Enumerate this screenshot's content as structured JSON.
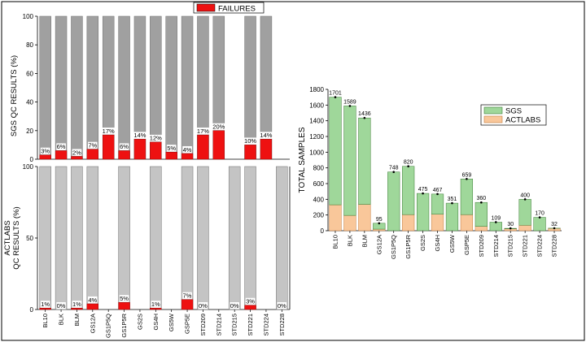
{
  "colors": {
    "sgs_bar": "#a0a0a0",
    "actlabs_bar": "#c4c4c4",
    "failure": "#ee1111",
    "sgs_green": "#9fd79a",
    "sgs_green_edge": "#3b7a33",
    "actlabs_orange": "#f9c79a",
    "actlabs_orange_edge": "#c27a3c",
    "axis": "#000000"
  },
  "chart_data": [
    {
      "id": "sgs-qc",
      "type": "bar",
      "stacked": true,
      "ylabel": "SGS QC RESULTS (%)",
      "ylim": [
        0,
        100
      ],
      "yticks": [
        0,
        20,
        40,
        60,
        80,
        100
      ],
      "legend": {
        "label": "FAILURES",
        "position": "top"
      },
      "categories": [
        "BL10",
        "BLK",
        "BLM",
        "GS12A",
        "GS1P5Q",
        "GS1P5R",
        "GS2S",
        "GS4H",
        "GS5W",
        "GSP5E",
        "STD209",
        "STD214",
        "STD215",
        "STD221",
        "STD224",
        "STD228"
      ],
      "series": [
        {
          "name": "FAILURES",
          "values": [
            3,
            6,
            2,
            7,
            17,
            6,
            14,
            12,
            5,
            4,
            17,
            20,
            null,
            10,
            14,
            null
          ]
        }
      ],
      "total": [
        100,
        100,
        100,
        100,
        100,
        100,
        100,
        100,
        100,
        100,
        100,
        100,
        null,
        100,
        100,
        null
      ],
      "data_labels": [
        "3%",
        "6%",
        "2%",
        "7%",
        "17%",
        "6%",
        "14%",
        "12%",
        "5%",
        "4%",
        "17%",
        "20%",
        "",
        "10%",
        "14%",
        ""
      ]
    },
    {
      "id": "actlabs-qc",
      "type": "bar",
      "stacked": true,
      "ylabel": "ACTLABS QC RESULTS (%)",
      "ylabel_lines": [
        "ACTLABS",
        "QC RESULTS (%)"
      ],
      "ylim": [
        0,
        100
      ],
      "yticks": [
        0,
        50,
        100
      ],
      "categories": [
        "BL10",
        "BLK",
        "BLM",
        "GS12A",
        "GS1P5Q",
        "GS1P5R",
        "GS2S",
        "GS4H",
        "GS5W",
        "GSP5E",
        "STD209",
        "STD214",
        "STD215",
        "STD221",
        "STD224",
        "STD228"
      ],
      "series": [
        {
          "name": "FAILURES",
          "values": [
            1,
            0,
            1,
            4,
            null,
            5,
            null,
            1,
            null,
            7,
            0,
            null,
            0,
            3,
            null,
            0
          ]
        }
      ],
      "total": [
        100,
        100,
        100,
        100,
        null,
        100,
        null,
        100,
        null,
        100,
        100,
        null,
        100,
        100,
        null,
        100
      ],
      "data_labels": [
        "1%",
        "0%",
        "1%",
        "4%",
        "",
        "5%",
        "",
        "1%",
        "",
        "7%",
        "0%",
        "",
        "0%",
        "3%",
        "",
        "0%"
      ]
    },
    {
      "id": "total-samples",
      "type": "bar",
      "stacked": true,
      "ylabel": "TOTAL SAMPLES",
      "ylim": [
        0,
        1800
      ],
      "yticks": [
        0,
        200,
        400,
        600,
        800,
        1000,
        1200,
        1400,
        1600,
        1800
      ],
      "legend": {
        "position": "top-right",
        "entries": [
          "SGS",
          "ACTLABS"
        ]
      },
      "categories": [
        "BL10",
        "BLK",
        "BLM",
        "GS12A",
        "GS1P5Q",
        "GS1P5R",
        "GS2S",
        "GS4H",
        "GS5W",
        "GSP5E",
        "STD209",
        "STD214",
        "STD215",
        "STD221",
        "STD224",
        "STD228"
      ],
      "series": [
        {
          "name": "ACTLABS",
          "values": [
            330,
            195,
            335,
            20,
            0,
            205,
            0,
            210,
            0,
            205,
            55,
            0,
            25,
            70,
            0,
            30
          ]
        },
        {
          "name": "SGS",
          "values": [
            1371,
            1394,
            1101,
            75,
            748,
            615,
            475,
            257,
            351,
            454,
            305,
            109,
            5,
            330,
            170,
            2
          ]
        }
      ],
      "totals": [
        1701,
        1589,
        1436,
        95,
        748,
        820,
        475,
        467,
        351,
        659,
        360,
        109,
        30,
        400,
        170,
        32
      ],
      "total_labels": [
        "1701",
        "1589",
        "1436",
        "95",
        "748",
        "820",
        "475",
        "467",
        "351",
        "659",
        "360",
        "109",
        "30",
        "400",
        "170",
        "32"
      ]
    }
  ]
}
